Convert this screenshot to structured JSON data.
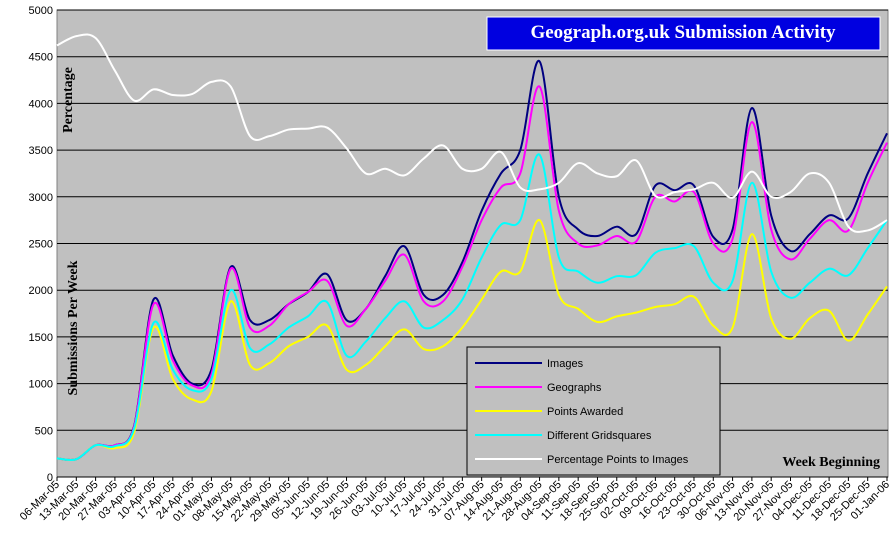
{
  "chart_data": {
    "type": "line",
    "title": "Geograph.org.uk Submission Activity",
    "ylabel": "Submissions Per Week",
    "percentage_label": "Percentage",
    "xlabel": "Week Beginning",
    "categories": [
      "06-Mar-05",
      "13-Mar-05",
      "20-Mar-05",
      "27-Mar-05",
      "03-Apr-05",
      "10-Apr-05",
      "17-Apr-05",
      "24-Apr-05",
      "01-May-05",
      "08-May-05",
      "15-May-05",
      "22-May-05",
      "29-May-05",
      "05-Jun-05",
      "12-Jun-05",
      "19-Jun-05",
      "26-Jun-05",
      "03-Jul-05",
      "10-Jul-05",
      "17-Jul-05",
      "24-Jul-05",
      "31-Jul-05",
      "07-Aug-05",
      "14-Aug-05",
      "21-Aug-05",
      "28-Aug-05",
      "04-Sep-05",
      "11-Sep-05",
      "18-Sep-05",
      "25-Sep-05",
      "02-Oct-05",
      "09-Oct-05",
      "16-Oct-05",
      "23-Oct-05",
      "30-Oct-05",
      "06-Nov-05",
      "13-Nov-05",
      "20-Nov-05",
      "27-Nov-05",
      "04-Dec-05",
      "11-Dec-05",
      "18-Dec-05",
      "25-Dec-05",
      "01-Jan-06"
    ],
    "series": [
      {
        "name": "Images",
        "color": "#000080",
        "values": [
          200,
          190,
          340,
          340,
          550,
          1900,
          1300,
          1000,
          1150,
          2250,
          1680,
          1680,
          1850,
          1980,
          2170,
          1680,
          1800,
          2150,
          2470,
          1950,
          1950,
          2300,
          2850,
          3250,
          3500,
          4450,
          3000,
          2650,
          2580,
          2680,
          2600,
          3120,
          3070,
          3120,
          2570,
          2650,
          3950,
          2800,
          2420,
          2600,
          2800,
          2770,
          3250,
          3680
        ]
      },
      {
        "name": "Geographs",
        "color": "#ff00ff",
        "values": [
          200,
          190,
          340,
          340,
          540,
          1850,
          1250,
          980,
          1100,
          2230,
          1600,
          1620,
          1850,
          1980,
          2100,
          1620,
          1800,
          2100,
          2380,
          1880,
          1880,
          2250,
          2750,
          3100,
          3250,
          4180,
          2850,
          2500,
          2480,
          2580,
          2520,
          3000,
          2950,
          3050,
          2500,
          2550,
          3800,
          2650,
          2330,
          2550,
          2750,
          2640,
          3150,
          3580
        ]
      },
      {
        "name": "Points Awarded",
        "color": "#ffff00",
        "values": [
          200,
          190,
          340,
          310,
          480,
          1600,
          1050,
          830,
          920,
          1880,
          1200,
          1220,
          1400,
          1500,
          1620,
          1150,
          1200,
          1400,
          1580,
          1370,
          1400,
          1600,
          1900,
          2200,
          2200,
          2750,
          1950,
          1800,
          1660,
          1720,
          1760,
          1820,
          1850,
          1930,
          1620,
          1600,
          2600,
          1700,
          1480,
          1700,
          1780,
          1460,
          1740,
          2040
        ]
      },
      {
        "name": "Different Gridsquares",
        "color": "#00ffff",
        "values": [
          200,
          190,
          340,
          330,
          520,
          1650,
          1150,
          930,
          1050,
          2000,
          1380,
          1420,
          1600,
          1720,
          1870,
          1300,
          1450,
          1700,
          1880,
          1600,
          1680,
          1900,
          2350,
          2700,
          2750,
          3450,
          2350,
          2200,
          2080,
          2150,
          2160,
          2400,
          2450,
          2470,
          2080,
          2100,
          3150,
          2200,
          1920,
          2080,
          2230,
          2160,
          2450,
          2750
        ]
      },
      {
        "name": "Percentage Points to Images",
        "color": "#ffffff",
        "values": [
          4620,
          4720,
          4700,
          4350,
          4030,
          4150,
          4090,
          4100,
          4230,
          4180,
          3650,
          3650,
          3720,
          3730,
          3740,
          3520,
          3250,
          3300,
          3230,
          3410,
          3550,
          3300,
          3300,
          3480,
          3100,
          3080,
          3150,
          3360,
          3250,
          3220,
          3390,
          3010,
          3050,
          3080,
          3150,
          2990,
          3270,
          3000,
          3050,
          3250,
          3150,
          2680,
          2640,
          2750
        ]
      }
    ],
    "ylim": [
      0,
      5000
    ],
    "yticks": [
      0,
      500,
      1000,
      1500,
      2000,
      2500,
      3000,
      3500,
      4000,
      4500,
      5000
    ],
    "grid": true,
    "legend": "bottom-right"
  }
}
